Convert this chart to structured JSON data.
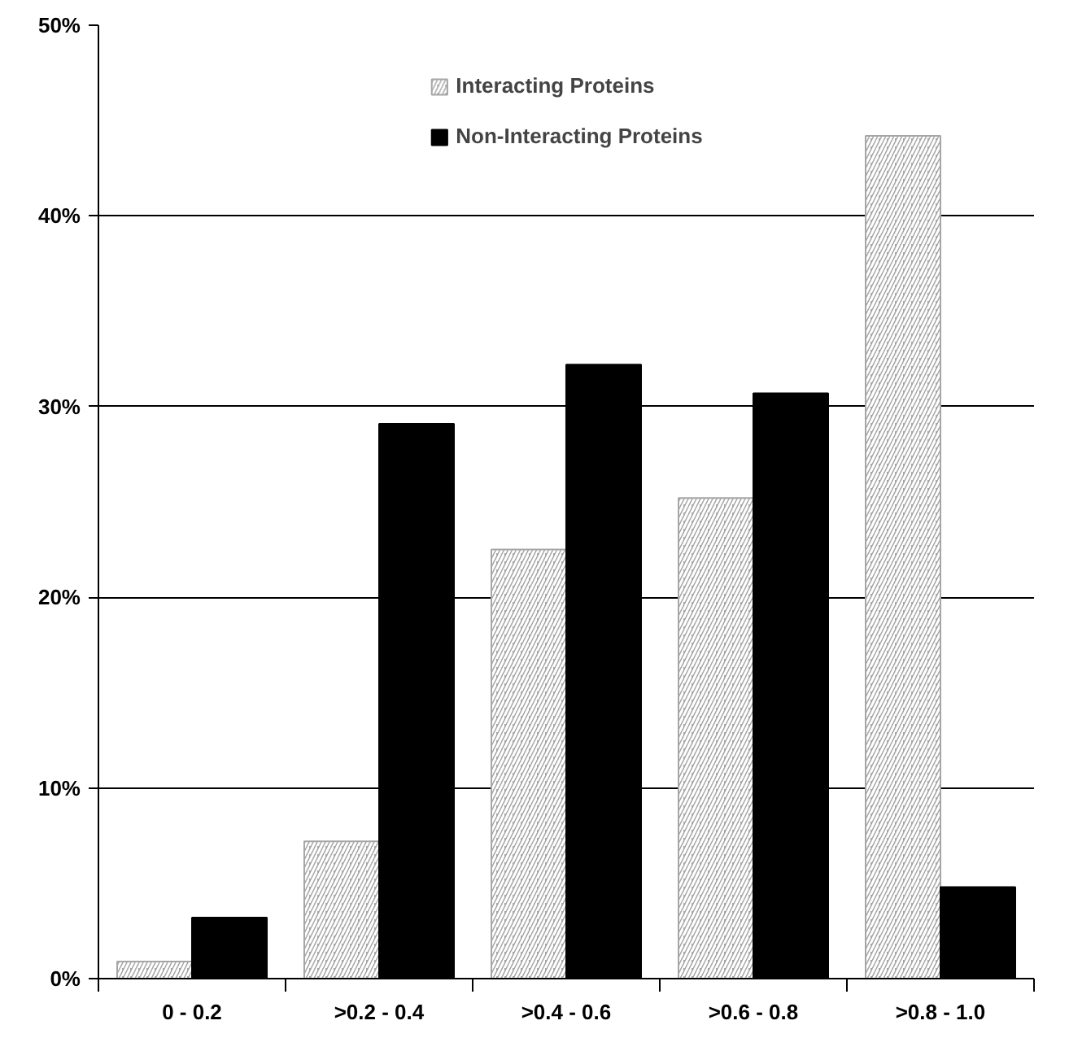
{
  "chart_data": {
    "type": "bar",
    "categories": [
      "0 - 0.2",
      ">0.2 - 0.4",
      ">0.4 - 0.6",
      ">0.6 - 0.8",
      ">0.8 - 1.0"
    ],
    "series": [
      {
        "name": "Interacting Proteins",
        "color": "#a6a6a6",
        "values": [
          0.9,
          7.2,
          22.5,
          25.2,
          44.2
        ]
      },
      {
        "name": "Non-Interacting Proteins",
        "color": "#000000",
        "values": [
          3.2,
          29.1,
          32.2,
          30.7,
          4.8
        ]
      }
    ],
    "ylim": [
      0,
      50
    ],
    "yticks": [
      {
        "value": 0,
        "label": "0%"
      },
      {
        "value": 10,
        "label": "10%"
      },
      {
        "value": 20,
        "label": "20%"
      },
      {
        "value": 30,
        "label": "30%"
      },
      {
        "value": 40,
        "label": "40%"
      },
      {
        "value": 50,
        "label": "50%"
      }
    ],
    "grid": "y",
    "legend": "top"
  }
}
